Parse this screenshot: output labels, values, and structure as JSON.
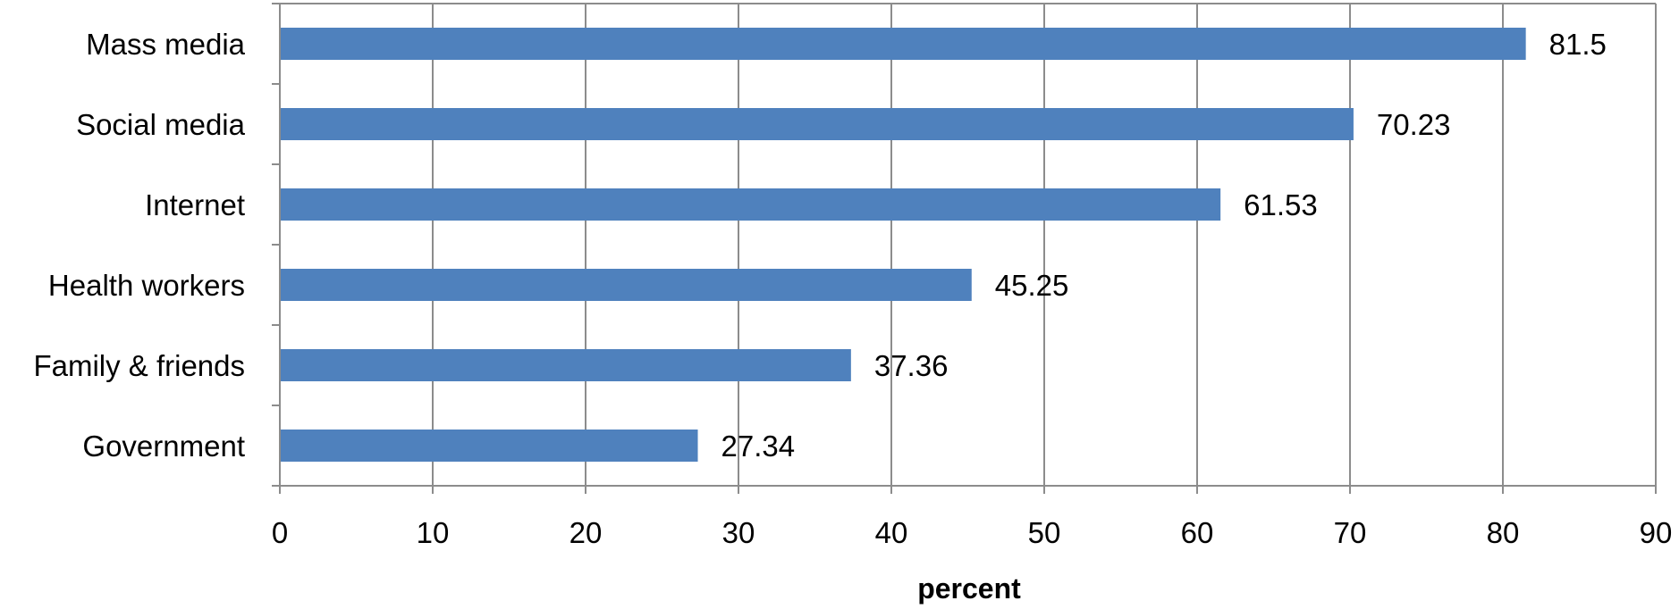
{
  "chart_data": {
    "type": "bar",
    "orientation": "horizontal",
    "categories": [
      "Mass media",
      "Social media",
      "Internet",
      "Health workers",
      "Family & friends",
      "Government"
    ],
    "values": [
      81.5,
      70.23,
      61.53,
      45.25,
      37.36,
      27.34
    ],
    "data_labels": [
      "81.5",
      "70.23",
      "61.53",
      "45.25",
      "37.36",
      "27.34"
    ],
    "xlabel": "percent",
    "ylabel": "",
    "title": "",
    "xlim": [
      0,
      90
    ],
    "xticks": [
      0,
      10,
      20,
      30,
      40,
      50,
      60,
      70,
      80,
      90
    ],
    "grid": "vertical",
    "legend": "none",
    "bar_color": "#4f81bd"
  }
}
